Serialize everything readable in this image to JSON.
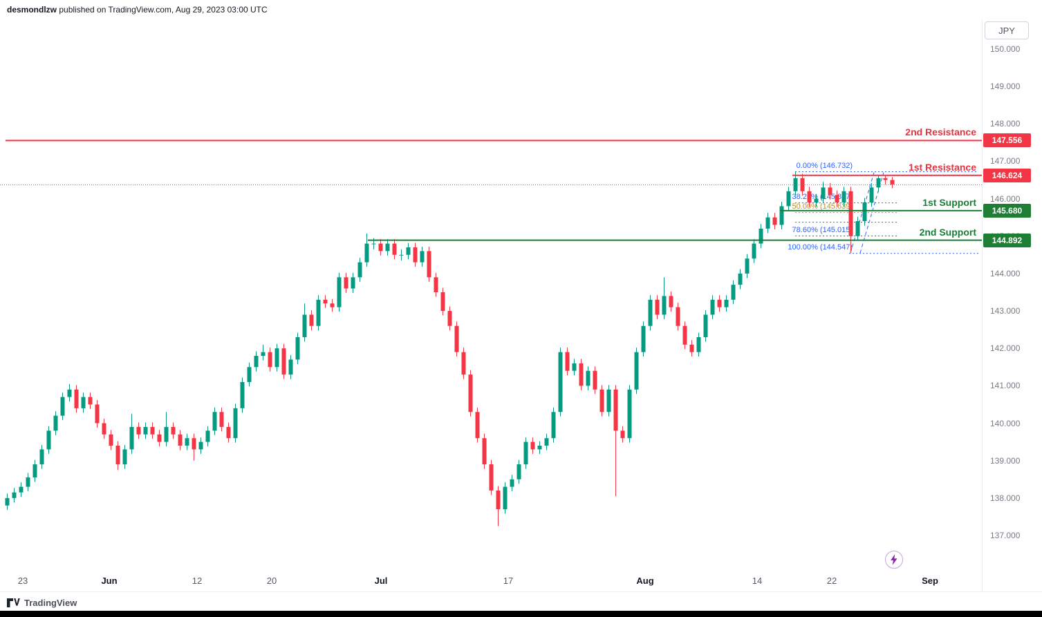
{
  "header": {
    "user": "desmondlzw",
    "attribution_rest": " published on TradingView.com, Aug 29, 2023 03:00 UTC"
  },
  "symbol_box": {
    "label": "JPY"
  },
  "footer": {
    "brand": "TradingView"
  },
  "fab": {
    "icon": "lightning"
  },
  "colors": {
    "up": "#089981",
    "down": "#f23645",
    "resistance": "#e8333f",
    "support": "#1a7d36",
    "badge_red": "#f23645",
    "badge_green": "#1e7e34",
    "fib_blue": "#2962ff",
    "fib_gold": "#bf8f1a",
    "axis_text": "#787b86"
  },
  "chart_data": {
    "type": "candlestick",
    "symbol": "JPY",
    "title": "",
    "ylim": [
      136.7,
      150.5
    ],
    "grid": false,
    "price_axis_labels": [
      "150.000",
      "149.000",
      "148.000",
      "147.000",
      "146.000",
      "145.000",
      "144.000",
      "143.000",
      "142.000",
      "141.000",
      "140.000",
      "139.000",
      "138.000",
      "137.000"
    ],
    "time_ticks": [
      {
        "label": "23",
        "i": 2.3,
        "major": false
      },
      {
        "label": "Jun",
        "i": 14.8,
        "major": true
      },
      {
        "label": "12",
        "i": 27.5,
        "major": false
      },
      {
        "label": "20",
        "i": 38.3,
        "major": false
      },
      {
        "label": "Jul",
        "i": 54.1,
        "major": true
      },
      {
        "label": "17",
        "i": 72.5,
        "major": false
      },
      {
        "label": "Aug",
        "i": 92.3,
        "major": true
      },
      {
        "label": "14",
        "i": 108.5,
        "major": false
      },
      {
        "label": "22",
        "i": 119.3,
        "major": false
      },
      {
        "label": "Sep",
        "i": 133.5,
        "major": true
      }
    ],
    "levels": [
      {
        "label": "2nd Resistance",
        "price": 147.556,
        "price_text": "147.556",
        "kind": "resistance",
        "start_i": -0.2
      },
      {
        "label": "1st Resistance",
        "price": 146.624,
        "price_text": "146.624",
        "kind": "resistance",
        "start_i": 113.6
      },
      {
        "label": "1st Support",
        "price": 145.68,
        "price_text": "145.680",
        "kind": "support",
        "start_i": 111.8
      },
      {
        "label": "2nd Support",
        "price": 144.892,
        "price_text": "144.892",
        "kind": "support",
        "start_i": 52.2
      }
    ],
    "last_price_line": {
      "price": 146.38
    },
    "fibonacci": {
      "start_i": 114,
      "box_end_i": 128.8,
      "extend_end_x": 1415,
      "label_end_x": 1233,
      "levels": [
        {
          "label": "0.00% (146.732)",
          "price": 146.732,
          "color": "blue",
          "extend_right": true,
          "show_label": true
        },
        {
          "label": "38.20% (145.897)",
          "price": 145.897,
          "color": "blue",
          "extend_right": false,
          "show_label": true
        },
        {
          "label": "50.00% (145.639)",
          "price": 145.639,
          "color": "gold",
          "extend_right": false,
          "show_label": true
        },
        {
          "label": "61.80% (145.382)",
          "price": 145.382,
          "color": "blue",
          "extend_right": false,
          "show_label": false
        },
        {
          "label": "78.60% (145.015)",
          "price": 145.015,
          "color": "blue",
          "extend_right": false,
          "show_label": true
        },
        {
          "label": "100.00% (144.547)",
          "price": 144.547,
          "color": "blue",
          "extend_right": true,
          "show_label": true,
          "start_i": 121.8
        }
      ],
      "trend_lines": [
        {
          "x1_i": 122.0,
          "p1": 144.55,
          "x2_i": 125.4,
          "p2": 146.7
        },
        {
          "x1_i": 123.4,
          "p1": 144.55,
          "x2_i": 126.8,
          "p2": 146.7
        }
      ]
    },
    "candles": [
      [
        137.8,
        138.12,
        137.68,
        138.0
      ],
      [
        138.0,
        138.27,
        137.88,
        138.15
      ],
      [
        138.15,
        138.42,
        138.03,
        138.3
      ],
      [
        138.3,
        138.67,
        138.18,
        138.55
      ],
      [
        138.55,
        139.02,
        138.43,
        138.9
      ],
      [
        138.9,
        139.42,
        138.78,
        139.3
      ],
      [
        139.3,
        139.92,
        139.18,
        139.8
      ],
      [
        139.8,
        140.32,
        139.68,
        140.2
      ],
      [
        140.2,
        140.82,
        140.08,
        140.7
      ],
      [
        140.7,
        141.05,
        140.58,
        140.9
      ],
      [
        140.9,
        141.02,
        140.28,
        140.4
      ],
      [
        140.4,
        140.82,
        140.28,
        140.7
      ],
      [
        140.7,
        140.82,
        140.38,
        140.5
      ],
      [
        140.5,
        140.62,
        139.88,
        140.0
      ],
      [
        140.0,
        140.12,
        139.58,
        139.7
      ],
      [
        139.7,
        139.82,
        139.28,
        139.4
      ],
      [
        139.4,
        139.52,
        138.75,
        138.9
      ],
      [
        138.9,
        139.42,
        138.78,
        139.3
      ],
      [
        139.3,
        140.25,
        139.18,
        139.9
      ],
      [
        139.9,
        140.02,
        139.58,
        139.7
      ],
      [
        139.7,
        140.02,
        139.58,
        139.9
      ],
      [
        139.9,
        140.02,
        139.58,
        139.7
      ],
      [
        139.7,
        139.82,
        139.38,
        139.5
      ],
      [
        139.5,
        140.3,
        139.38,
        139.9
      ],
      [
        139.9,
        140.02,
        139.58,
        139.7
      ],
      [
        139.7,
        139.82,
        139.28,
        139.4
      ],
      [
        139.4,
        139.72,
        139.28,
        139.6
      ],
      [
        139.6,
        139.72,
        139.0,
        139.3
      ],
      [
        139.3,
        139.62,
        139.18,
        139.5
      ],
      [
        139.5,
        139.92,
        139.38,
        139.8
      ],
      [
        139.8,
        140.42,
        139.68,
        140.3
      ],
      [
        140.3,
        140.42,
        139.78,
        139.9
      ],
      [
        139.9,
        140.02,
        139.48,
        139.6
      ],
      [
        139.6,
        140.52,
        139.48,
        140.4
      ],
      [
        140.4,
        141.22,
        140.28,
        141.1
      ],
      [
        141.1,
        141.62,
        140.98,
        141.5
      ],
      [
        141.5,
        141.92,
        141.38,
        141.8
      ],
      [
        141.8,
        142.1,
        141.68,
        141.9
      ],
      [
        141.9,
        142.02,
        141.38,
        141.5
      ],
      [
        141.5,
        142.12,
        141.38,
        142.0
      ],
      [
        142.0,
        142.12,
        141.18,
        141.3
      ],
      [
        141.3,
        141.82,
        141.18,
        141.7
      ],
      [
        141.7,
        142.42,
        141.58,
        142.3
      ],
      [
        142.3,
        143.2,
        142.18,
        142.9
      ],
      [
        142.9,
        143.02,
        142.48,
        142.6
      ],
      [
        142.6,
        143.42,
        142.48,
        143.3
      ],
      [
        143.3,
        143.42,
        143.08,
        143.2
      ],
      [
        143.2,
        143.32,
        142.98,
        143.1
      ],
      [
        143.1,
        144.02,
        142.98,
        143.9
      ],
      [
        143.9,
        144.02,
        143.48,
        143.6
      ],
      [
        143.6,
        144.02,
        143.48,
        143.9
      ],
      [
        143.9,
        144.42,
        143.78,
        144.3
      ],
      [
        144.3,
        145.07,
        144.18,
        144.8
      ],
      [
        144.8,
        144.95,
        144.65,
        144.8
      ],
      [
        144.8,
        144.92,
        144.48,
        144.6
      ],
      [
        144.6,
        144.92,
        144.48,
        144.8
      ],
      [
        144.8,
        144.92,
        144.38,
        144.5
      ],
      [
        144.5,
        144.65,
        144.35,
        144.5
      ],
      [
        144.5,
        144.82,
        144.38,
        144.7
      ],
      [
        144.7,
        144.82,
        144.18,
        144.3
      ],
      [
        144.3,
        144.72,
        144.18,
        144.6
      ],
      [
        144.6,
        144.72,
        143.78,
        143.9
      ],
      [
        143.9,
        144.02,
        143.38,
        143.5
      ],
      [
        143.5,
        143.62,
        142.88,
        143.0
      ],
      [
        143.0,
        143.12,
        142.48,
        142.6
      ],
      [
        142.6,
        142.72,
        141.78,
        141.9
      ],
      [
        141.9,
        142.02,
        141.18,
        141.3
      ],
      [
        141.3,
        141.42,
        140.18,
        140.3
      ],
      [
        140.3,
        140.42,
        139.48,
        139.6
      ],
      [
        139.6,
        139.72,
        138.78,
        138.9
      ],
      [
        138.9,
        139.02,
        138.08,
        138.2
      ],
      [
        138.2,
        138.32,
        137.25,
        137.7
      ],
      [
        137.7,
        138.42,
        137.58,
        138.3
      ],
      [
        138.3,
        138.62,
        138.18,
        138.5
      ],
      [
        138.5,
        139.02,
        138.38,
        138.9
      ],
      [
        138.9,
        139.62,
        138.78,
        139.5
      ],
      [
        139.5,
        139.62,
        139.18,
        139.3
      ],
      [
        139.3,
        139.52,
        139.18,
        139.4
      ],
      [
        139.4,
        139.72,
        139.28,
        139.6
      ],
      [
        139.6,
        140.42,
        139.48,
        140.3
      ],
      [
        140.3,
        142.02,
        140.18,
        141.9
      ],
      [
        141.9,
        142.02,
        141.28,
        141.4
      ],
      [
        141.4,
        141.72,
        141.28,
        141.6
      ],
      [
        141.6,
        141.72,
        140.88,
        141.0
      ],
      [
        141.0,
        141.52,
        140.88,
        141.4
      ],
      [
        141.4,
        141.52,
        140.78,
        140.9
      ],
      [
        140.9,
        141.02,
        140.18,
        140.3
      ],
      [
        140.3,
        141.02,
        140.18,
        140.9
      ],
      [
        140.9,
        141.02,
        138.05,
        139.8
      ],
      [
        139.8,
        139.92,
        139.48,
        139.6
      ],
      [
        139.6,
        141.02,
        139.48,
        140.9
      ],
      [
        140.9,
        142.02,
        140.78,
        141.9
      ],
      [
        141.9,
        142.72,
        141.78,
        142.6
      ],
      [
        142.6,
        143.42,
        142.48,
        143.3
      ],
      [
        143.3,
        143.42,
        142.78,
        142.9
      ],
      [
        142.9,
        143.9,
        142.78,
        143.4
      ],
      [
        143.4,
        143.52,
        142.98,
        143.1
      ],
      [
        143.1,
        143.22,
        142.48,
        142.6
      ],
      [
        142.6,
        142.72,
        141.98,
        142.1
      ],
      [
        142.1,
        142.22,
        141.78,
        141.9
      ],
      [
        141.9,
        142.42,
        141.78,
        142.3
      ],
      [
        142.3,
        143.02,
        142.18,
        142.9
      ],
      [
        142.9,
        143.42,
        142.78,
        143.3
      ],
      [
        143.3,
        143.42,
        142.98,
        143.1
      ],
      [
        143.1,
        143.42,
        142.98,
        143.3
      ],
      [
        143.3,
        143.82,
        143.18,
        143.7
      ],
      [
        143.7,
        144.12,
        143.58,
        144.0
      ],
      [
        144.0,
        144.52,
        143.88,
        144.4
      ],
      [
        144.4,
        144.92,
        144.28,
        144.8
      ],
      [
        144.8,
        145.32,
        144.68,
        145.2
      ],
      [
        145.2,
        145.62,
        145.08,
        145.5
      ],
      [
        145.5,
        145.62,
        145.18,
        145.3
      ],
      [
        145.3,
        145.92,
        145.18,
        145.8
      ],
      [
        145.8,
        146.32,
        145.68,
        146.2
      ],
      [
        146.2,
        146.73,
        146.08,
        146.55
      ],
      [
        146.55,
        146.67,
        146.08,
        146.2
      ],
      [
        146.2,
        146.32,
        145.78,
        145.9
      ],
      [
        145.9,
        146.12,
        145.78,
        146.0
      ],
      [
        146.0,
        146.45,
        145.88,
        146.3
      ],
      [
        146.3,
        146.42,
        145.98,
        146.1
      ],
      [
        146.1,
        146.22,
        145.78,
        145.9
      ],
      [
        145.9,
        146.32,
        145.78,
        146.2
      ],
      [
        146.2,
        146.32,
        144.55,
        145.0
      ],
      [
        145.0,
        145.52,
        144.88,
        145.4
      ],
      [
        145.4,
        146.02,
        145.28,
        145.9
      ],
      [
        145.9,
        146.42,
        145.78,
        146.3
      ],
      [
        146.3,
        146.62,
        146.18,
        146.55
      ],
      [
        146.55,
        146.62,
        146.38,
        146.5
      ],
      [
        146.5,
        146.58,
        146.28,
        146.38
      ]
    ]
  }
}
